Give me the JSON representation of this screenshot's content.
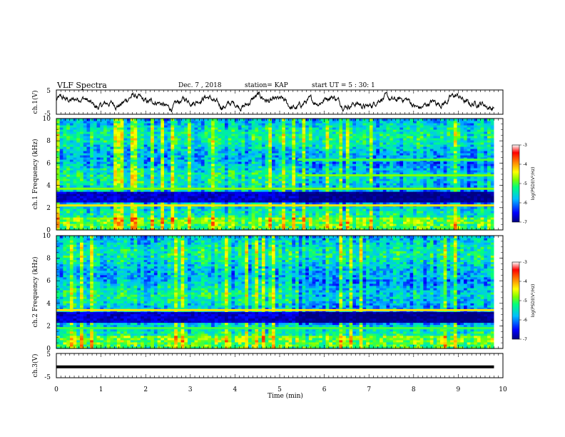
{
  "header": {
    "title": "VLF Spectra",
    "date": "Dec. 7 , 2018",
    "station": "station= KAP",
    "start": "start UT = 5 : 30: 1"
  },
  "chart_data": [
    {
      "type": "line",
      "panel": "ch1_waveform",
      "ylabel": "ch.1(V)",
      "yticks": [
        "5",
        "-5"
      ],
      "ylim": [
        -5,
        5
      ],
      "xlim": [
        0,
        10
      ],
      "series": [
        {
          "values_description": "noisy broadband signal oscillating roughly between -3 and +3 V"
        }
      ],
      "color": "#000000"
    },
    {
      "type": "heatmap",
      "panel": "ch1_spectrogram",
      "ylabel": "ch.1 Frequency (kHz)",
      "yticks": [
        "0",
        "2",
        "4",
        "6",
        "8",
        "10"
      ],
      "ylim": [
        0,
        10
      ],
      "xlim": [
        0,
        10
      ],
      "value_range": [
        -7,
        -3
      ],
      "colorbar": {
        "label": "log(PSD)(V²/Hz)",
        "ticks": [
          "-3",
          "-4",
          "-5",
          "-6",
          "-7"
        ],
        "colors": [
          "#000080",
          "#0000ff",
          "#00bfff",
          "#00ff7f",
          "#7fff00",
          "#ffff00",
          "#ff7f00",
          "#ff0000",
          "#ffffff"
        ]
      },
      "features": [
        {
          "kind": "band",
          "freq_khz": 2.2,
          "level": -4.3,
          "x_start": 0,
          "x_end": 10
        },
        {
          "kind": "band",
          "freq_khz": 3.7,
          "level": -4.8,
          "x_start": 0,
          "x_end": 10
        },
        {
          "kind": "band",
          "freq_khz": 4.9,
          "level": -4.8,
          "x_start": 5.4,
          "x_end": 10
        },
        {
          "kind": "band",
          "freq_khz": 6.3,
          "level": -5.0,
          "x_start": 5.4,
          "x_end": 10
        },
        {
          "kind": "quiet_band",
          "freq_range_khz": [
            2.5,
            3.3
          ],
          "level": -6.7
        },
        {
          "kind": "step_change",
          "x_min": 5.4
        }
      ]
    },
    {
      "type": "heatmap",
      "panel": "ch2_spectrogram",
      "ylabel": "ch.2 Frequency (kHz)",
      "yticks": [
        "0",
        "2",
        "4",
        "6",
        "8",
        "10"
      ],
      "ylim": [
        0,
        10
      ],
      "xlim": [
        0,
        10
      ],
      "value_range": [
        -7,
        -3
      ],
      "colorbar": {
        "label": "log(PSD)(V²/Hz)",
        "ticks": [
          "-3",
          "-4",
          "-5",
          "-6",
          "-7"
        ],
        "colors": [
          "#000080",
          "#0000ff",
          "#00bfff",
          "#00ff7f",
          "#7fff00",
          "#ffff00",
          "#ff7f00",
          "#ff0000",
          "#ffffff"
        ]
      },
      "features": [
        {
          "kind": "band",
          "freq_khz": 3.4,
          "level": -4.3,
          "x_start": 0,
          "x_end": 10
        },
        {
          "kind": "band",
          "freq_khz": 1.8,
          "level": -5.0,
          "x_start": 0,
          "x_end": 10
        },
        {
          "kind": "quiet_band",
          "freq_range_khz": [
            2.2,
            3.1
          ],
          "level": -6.7
        },
        {
          "kind": "step_change",
          "x_min": 5.4
        }
      ]
    },
    {
      "type": "line",
      "panel": "ch3_waveform",
      "ylabel": "ch.3(V)",
      "yticks": [
        "5",
        "-5"
      ],
      "ylim": [
        -5,
        5
      ],
      "xlim": [
        0,
        10
      ],
      "series": [
        {
          "values_constant": -0.5
        }
      ],
      "color": "#000000"
    }
  ],
  "xaxis": {
    "label": "Time (min)",
    "ticks": [
      "0",
      "1",
      "2",
      "3",
      "4",
      "5",
      "6",
      "7",
      "8",
      "9",
      "10"
    ]
  }
}
